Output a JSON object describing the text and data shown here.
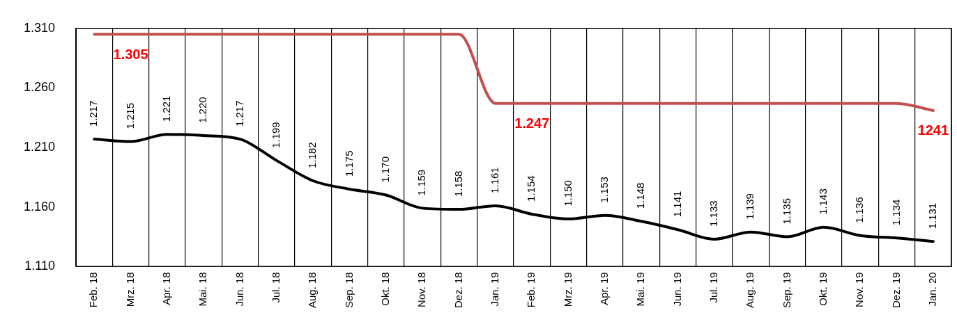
{
  "chart_data": {
    "type": "line",
    "categories": [
      "Feb. 18",
      "Mrz. 18",
      "Apr. 18",
      "Mai. 18",
      "Jun. 18",
      "Jul. 18",
      "Aug. 18",
      "Sep. 18",
      "Okt. 18",
      "Nov. 18",
      "Dez. 18",
      "Jan. 19",
      "Feb. 19",
      "Mrz. 19",
      "Apr. 19",
      "Mai. 19",
      "Jun. 19",
      "Jul. 19",
      "Aug. 19",
      "Sep. 19",
      "Okt. 19",
      "Nov. 19",
      "Dez. 19",
      "Jan. 20"
    ],
    "series": [
      {
        "color": "#000000",
        "values": [
          1.217,
          1.215,
          1.221,
          1.22,
          1.217,
          1.199,
          1.182,
          1.175,
          1.17,
          1.159,
          1.158,
          1.161,
          1.154,
          1.15,
          1.153,
          1.148,
          1.141,
          1.133,
          1.139,
          1.135,
          1.143,
          1.136,
          1.134,
          1.131
        ],
        "value_labels": [
          "1.217",
          "1.215",
          "1.221",
          "1.220",
          "1.217",
          "1.199",
          "1.182",
          "1.175",
          "1.170",
          "1.159",
          "1.158",
          "1.161",
          "1.154",
          "1.150",
          "1.153",
          "1.148",
          "1.141",
          "1.133",
          "1.139",
          "1.135",
          "1.143",
          "1.136",
          "1.134",
          "1.131"
        ]
      },
      {
        "color": "#c0504d",
        "values": [
          1.305,
          1.305,
          1.305,
          1.305,
          1.305,
          1.305,
          1.305,
          1.305,
          1.305,
          1.305,
          1.305,
          1.247,
          1.247,
          1.247,
          1.247,
          1.247,
          1.247,
          1.247,
          1.247,
          1.247,
          1.247,
          1.247,
          1.247,
          1.241
        ]
      }
    ],
    "annotations": [
      {
        "text": "1.305",
        "x": "Mrz. 18",
        "y": 1.305
      },
      {
        "text": "1.247",
        "x": "Feb. 19",
        "y": 1.247
      },
      {
        "text": "1241",
        "x": "Jan. 20",
        "y": 1.241
      }
    ],
    "ylim": [
      1.11,
      1.31
    ],
    "yticks": [
      {
        "value": 1.11,
        "label": "1.110"
      },
      {
        "value": 1.16,
        "label": "1.160"
      },
      {
        "value": 1.21,
        "label": "1.210"
      },
      {
        "value": 1.26,
        "label": "1.260"
      },
      {
        "value": 1.31,
        "label": "1.310"
      }
    ],
    "grid": "x",
    "legend": false,
    "marker": "none",
    "line_style": "solid"
  }
}
